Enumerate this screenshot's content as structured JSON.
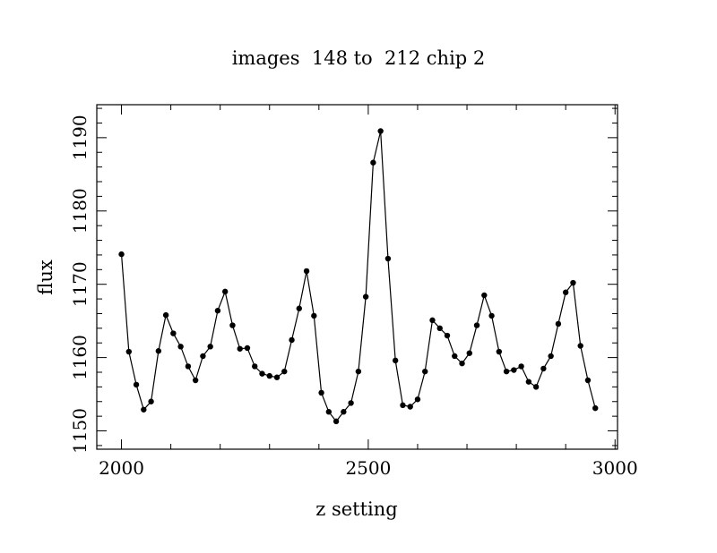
{
  "chart_data": {
    "type": "line",
    "title": "images  148 to  212 chip 2",
    "xlabel": "z setting",
    "ylabel": "flux",
    "xlim": [
      1950,
      3005
    ],
    "ylim": [
      1147.5,
      1194.5
    ],
    "x_ticks": [
      2000,
      2500,
      3000
    ],
    "y_ticks": [
      1150,
      1160,
      1170,
      1180,
      1190
    ],
    "x_tick_labels": [
      "2000",
      "2500",
      "3000"
    ],
    "y_tick_labels": [
      "1150",
      "1160",
      "1170",
      "1180",
      "1190"
    ],
    "x_minor_step": 100,
    "y_minor_step": 2,
    "grid": false,
    "marker": "filled-circle",
    "line_color": "#000000",
    "series": [
      {
        "x": [
          2000,
          2015,
          2030,
          2045,
          2060,
          2075,
          2090,
          2105,
          2120,
          2135,
          2150,
          2165,
          2180,
          2195,
          2210,
          2225,
          2240,
          2255,
          2270,
          2285,
          2300,
          2315,
          2330,
          2345,
          2360,
          2375,
          2390,
          2405,
          2420,
          2435,
          2450,
          2465,
          2480,
          2495,
          2510,
          2525,
          2540,
          2555,
          2570,
          2585,
          2600,
          2615,
          2630,
          2645,
          2660,
          2675,
          2690,
          2705,
          2720,
          2735,
          2750,
          2765,
          2780,
          2795,
          2810,
          2825,
          2840,
          2855,
          2870,
          2885,
          2900,
          2915,
          2930,
          2945,
          2960
        ],
        "y": [
          1174.1,
          1160.8,
          1156.3,
          1152.9,
          1154.0,
          1160.9,
          1165.8,
          1163.3,
          1161.5,
          1158.8,
          1156.9,
          1160.2,
          1161.5,
          1166.4,
          1169.0,
          1164.4,
          1161.2,
          1161.3,
          1158.8,
          1157.8,
          1157.5,
          1157.3,
          1158.1,
          1162.4,
          1166.7,
          1171.8,
          1165.7,
          1155.2,
          1152.6,
          1151.3,
          1152.6,
          1153.8,
          1158.1,
          1168.3,
          1186.6,
          1190.9,
          1173.5,
          1159.6,
          1153.5,
          1153.3,
          1154.3,
          1158.1,
          1165.1,
          1164.0,
          1163.0,
          1160.2,
          1159.2,
          1160.6,
          1164.4,
          1168.5,
          1165.7,
          1160.8,
          1158.1,
          1158.3,
          1158.8,
          1156.7,
          1156.0,
          1158.5,
          1160.2,
          1164.6,
          1168.9,
          1170.2,
          1161.6,
          1156.9,
          1153.1
        ]
      }
    ]
  }
}
